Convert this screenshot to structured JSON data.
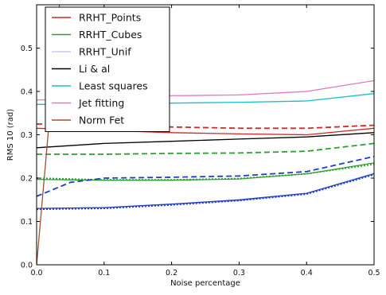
{
  "chart_data": {
    "type": "line",
    "title": "",
    "xlabel": "Noise percentage",
    "ylabel": "RMS 10 (rad)",
    "xlim": [
      0.0,
      0.5
    ],
    "ylim": [
      0.0,
      0.6
    ],
    "xticks": [
      "0.0",
      "0.1",
      "0.2",
      "0.3",
      "0.4",
      "0.5"
    ],
    "yticks": [
      "0.0",
      "0.1",
      "0.2",
      "0.3",
      "0.4",
      "0.5"
    ],
    "grid": false,
    "legend_position": "top-left",
    "series": [
      {
        "name": "RRHT_Points",
        "color": "#d62728",
        "style": "solid",
        "x": [
          0.0,
          0.1,
          0.2,
          0.3,
          0.4,
          0.5
        ],
        "y": [
          0.315,
          0.31,
          0.305,
          0.302,
          0.3,
          0.315
        ]
      },
      {
        "name": "",
        "color": "#d62728",
        "style": "dashed",
        "x": [
          0.0,
          0.1,
          0.2,
          0.3,
          0.4,
          0.5
        ],
        "y": [
          0.325,
          0.322,
          0.318,
          0.315,
          0.315,
          0.322
        ]
      },
      {
        "name": "RRHT_Cubes",
        "color": "#2ca02c",
        "style": "solid",
        "x": [
          0.0,
          0.1,
          0.2,
          0.3,
          0.4,
          0.5
        ],
        "y": [
          0.197,
          0.195,
          0.195,
          0.198,
          0.21,
          0.235
        ]
      },
      {
        "name": "",
        "color": "#2ca02c",
        "style": "dashed",
        "x": [
          0.0,
          0.1,
          0.2,
          0.3,
          0.4,
          0.5
        ],
        "y": [
          0.255,
          0.255,
          0.257,
          0.258,
          0.262,
          0.28
        ]
      },
      {
        "name": "",
        "color": "#2ca02c",
        "style": "dotted",
        "x": [
          0.0,
          0.1,
          0.2,
          0.3,
          0.4,
          0.5
        ],
        "y": [
          0.2,
          0.196,
          0.196,
          0.199,
          0.21,
          0.232
        ]
      },
      {
        "name": "RRHT_Unif",
        "color": "#c8c8f0",
        "style": "solid",
        "x": [
          0.0,
          0.1,
          0.2,
          0.3,
          0.4,
          0.5
        ],
        "y": [
          0.13,
          0.132,
          0.14,
          0.148,
          0.165,
          0.212
        ]
      },
      {
        "name": "",
        "color": "#1f3fbf",
        "style": "solid",
        "x": [
          0.0,
          0.1,
          0.2,
          0.3,
          0.4,
          0.5
        ],
        "y": [
          0.13,
          0.132,
          0.14,
          0.15,
          0.165,
          0.21
        ]
      },
      {
        "name": "",
        "color": "#1f3fbf",
        "style": "dashed",
        "x": [
          0.0,
          0.05,
          0.1,
          0.2,
          0.3,
          0.4,
          0.5
        ],
        "y": [
          0.158,
          0.19,
          0.2,
          0.202,
          0.205,
          0.215,
          0.25
        ]
      },
      {
        "name": "",
        "color": "#1f3fbf",
        "style": "dotted",
        "x": [
          0.0,
          0.1,
          0.2,
          0.3,
          0.4,
          0.5
        ],
        "y": [
          0.128,
          0.13,
          0.138,
          0.148,
          0.163,
          0.208
        ]
      },
      {
        "name": "Li & al",
        "color": "#000000",
        "style": "solid",
        "x": [
          0.0,
          0.1,
          0.2,
          0.3,
          0.4,
          0.5
        ],
        "y": [
          0.27,
          0.28,
          0.285,
          0.29,
          0.295,
          0.305
        ]
      },
      {
        "name": "Least squares",
        "color": "#17becf",
        "style": "solid",
        "x": [
          0.0,
          0.1,
          0.2,
          0.3,
          0.4,
          0.5
        ],
        "y": [
          0.37,
          0.372,
          0.373,
          0.375,
          0.378,
          0.395
        ]
      },
      {
        "name": "Jet fitting",
        "color": "#e377c2",
        "style": "solid",
        "x": [
          0.0,
          0.1,
          0.2,
          0.3,
          0.4,
          0.5
        ],
        "y": [
          0.38,
          0.385,
          0.39,
          0.392,
          0.4,
          0.425
        ]
      },
      {
        "name": "Norm Fet",
        "color": "#a0522d",
        "style": "solid",
        "x": [
          0.0,
          0.035
        ],
        "y": [
          0.0,
          0.62
        ]
      }
    ]
  }
}
